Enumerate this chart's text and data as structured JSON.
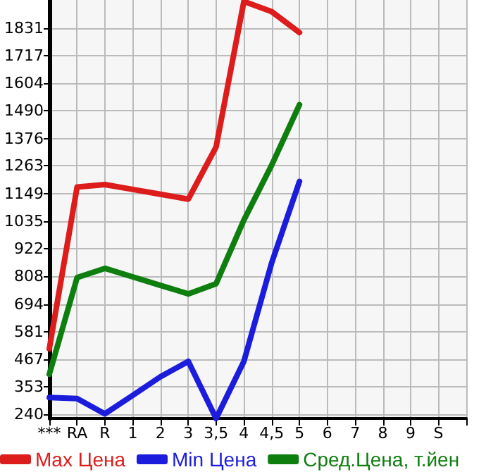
{
  "chart_data": {
    "type": "line",
    "categories": [
      "***",
      "RA",
      "R",
      "1",
      "2",
      "3",
      "3,5",
      "4",
      "4,5",
      "5",
      "6",
      "7",
      "8",
      "9",
      "S",
      null
    ],
    "series": [
      {
        "name": "Max Цена",
        "color": "#dd1c1c",
        "values": [
          510,
          1176,
          1186,
          1166,
          1146,
          1126,
          1341,
          1940,
          1898,
          1812,
          null,
          null,
          null,
          null,
          null,
          null
        ]
      },
      {
        "name": "Min Цена",
        "color": "#1c1cdd",
        "values": [
          309,
          305,
          242,
          318,
          395,
          458,
          223,
          458,
          864,
          1199,
          null,
          null,
          null,
          null,
          null,
          null
        ]
      },
      {
        "name": "Сред.Цена, т.йен",
        "color": "#0e7e0e",
        "values": [
          405,
          803,
          841,
          806,
          771,
          736,
          778,
          1040,
          1266,
          1515,
          null,
          null,
          null,
          null,
          null,
          null
        ]
      }
    ],
    "ylim": [
      223,
      1946
    ],
    "yticks": [
      240,
      353,
      467,
      581,
      694,
      808,
      922,
      1035,
      1149,
      1263,
      1376,
      1490,
      1604,
      1717,
      1831
    ],
    "grid": true,
    "legend": "bottom",
    "marker": "none",
    "line_style": "solid"
  }
}
